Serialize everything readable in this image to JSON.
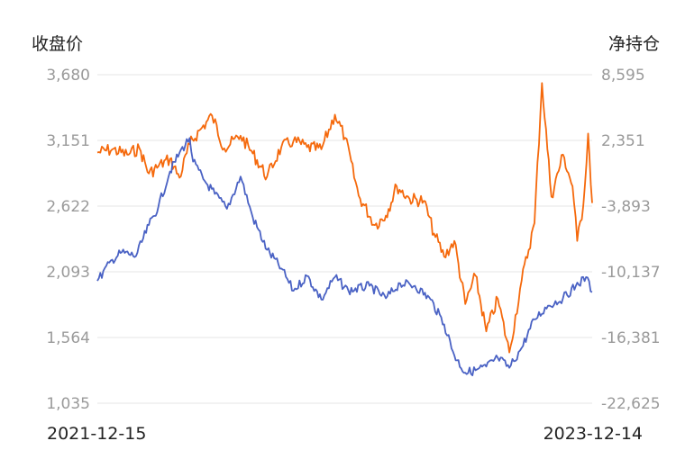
{
  "chart_data": {
    "type": "line",
    "left_axis": {
      "title": "收盘价",
      "ticks": [
        "3,680",
        "3,151",
        "2,622",
        "2,093",
        "1,564",
        "1,035"
      ],
      "range": [
        1035,
        3680
      ]
    },
    "right_axis": {
      "title": "净持仓",
      "ticks": [
        "8,595",
        "2,351",
        "-3,893",
        "-10,137",
        "-16,381",
        "-22,625"
      ],
      "range": [
        -22625,
        8595
      ]
    },
    "x_start_label": "2021-12-15",
    "x_end_label": "2023-12-14",
    "grid": true,
    "series": [
      {
        "axis": "left",
        "color": "#4a62c4",
        "points": [
          [
            "2021-12-15",
            2020
          ],
          [
            "2022-01-06",
            2190
          ],
          [
            "2022-01-20",
            2250
          ],
          [
            "2022-02-10",
            2220
          ],
          [
            "2022-03-01",
            2470
          ],
          [
            "2022-03-15",
            2620
          ],
          [
            "2022-04-01",
            2900
          ],
          [
            "2022-04-15",
            3050
          ],
          [
            "2022-04-30",
            3170
          ],
          [
            "2022-05-05",
            2980
          ],
          [
            "2022-05-20",
            2840
          ],
          [
            "2022-06-06",
            2720
          ],
          [
            "2022-06-24",
            2600
          ],
          [
            "2022-07-14",
            2860
          ],
          [
            "2022-08-01",
            2530
          ],
          [
            "2022-08-22",
            2270
          ],
          [
            "2022-09-12",
            2120
          ],
          [
            "2022-09-30",
            1940
          ],
          [
            "2022-10-20",
            2060
          ],
          [
            "2022-11-10",
            1870
          ],
          [
            "2022-11-30",
            2050
          ],
          [
            "2022-12-20",
            1940
          ],
          [
            "2023-01-20",
            1980
          ],
          [
            "2023-02-13",
            1880
          ],
          [
            "2023-03-06",
            2000
          ],
          [
            "2023-03-28",
            1980
          ],
          [
            "2023-04-20",
            1870
          ],
          [
            "2023-05-10",
            1670
          ],
          [
            "2023-05-25",
            1420
          ],
          [
            "2023-06-10",
            1280
          ],
          [
            "2023-06-25",
            1300
          ],
          [
            "2023-07-11",
            1330
          ],
          [
            "2023-07-28",
            1400
          ],
          [
            "2023-08-14",
            1320
          ],
          [
            "2023-09-01",
            1480
          ],
          [
            "2023-09-20",
            1710
          ],
          [
            "2023-10-10",
            1820
          ],
          [
            "2023-11-01",
            1880
          ],
          [
            "2023-11-20",
            1980
          ],
          [
            "2023-12-05",
            2050
          ],
          [
            "2023-12-14",
            1930
          ]
        ]
      },
      {
        "axis": "right",
        "color": "#f5690c",
        "points": [
          [
            "2021-12-15",
            1200
          ],
          [
            "2022-01-06",
            1500
          ],
          [
            "2022-01-28",
            1000
          ],
          [
            "2022-02-15",
            1600
          ],
          [
            "2022-03-01",
            -800
          ],
          [
            "2022-03-15",
            -100
          ],
          [
            "2022-04-01",
            600
          ],
          [
            "2022-04-15",
            -1200
          ],
          [
            "2022-04-30",
            2000
          ],
          [
            "2022-05-16",
            3400
          ],
          [
            "2022-06-02",
            4700
          ],
          [
            "2022-06-20",
            1600
          ],
          [
            "2022-07-14",
            2800
          ],
          [
            "2022-08-01",
            1100
          ],
          [
            "2022-08-22",
            -1100
          ],
          [
            "2022-09-12",
            1700
          ],
          [
            "2022-09-30",
            2300
          ],
          [
            "2022-10-20",
            1700
          ],
          [
            "2022-11-10",
            1500
          ],
          [
            "2022-11-30",
            4800
          ],
          [
            "2022-12-15",
            2600
          ],
          [
            "2023-01-04",
            -2900
          ],
          [
            "2023-01-28",
            -5700
          ],
          [
            "2023-02-13",
            -4800
          ],
          [
            "2023-03-01",
            -2000
          ],
          [
            "2023-03-20",
            -3200
          ],
          [
            "2023-04-10",
            -3400
          ],
          [
            "2023-04-25",
            -6500
          ],
          [
            "2023-05-10",
            -8700
          ],
          [
            "2023-05-25",
            -7200
          ],
          [
            "2023-06-10",
            -13200
          ],
          [
            "2023-06-25",
            -10500
          ],
          [
            "2023-07-11",
            -15800
          ],
          [
            "2023-07-28",
            -12700
          ],
          [
            "2023-08-14",
            -17800
          ],
          [
            "2023-09-01",
            -11000
          ],
          [
            "2023-09-20",
            -5500
          ],
          [
            "2023-10-01",
            7800
          ],
          [
            "2023-10-15",
            -3000
          ],
          [
            "2023-11-01",
            1000
          ],
          [
            "2023-11-15",
            -2000
          ],
          [
            "2023-11-22",
            -7200
          ],
          [
            "2023-12-01",
            -3800
          ],
          [
            "2023-12-08",
            3000
          ],
          [
            "2023-12-14",
            -3600
          ]
        ]
      }
    ]
  }
}
